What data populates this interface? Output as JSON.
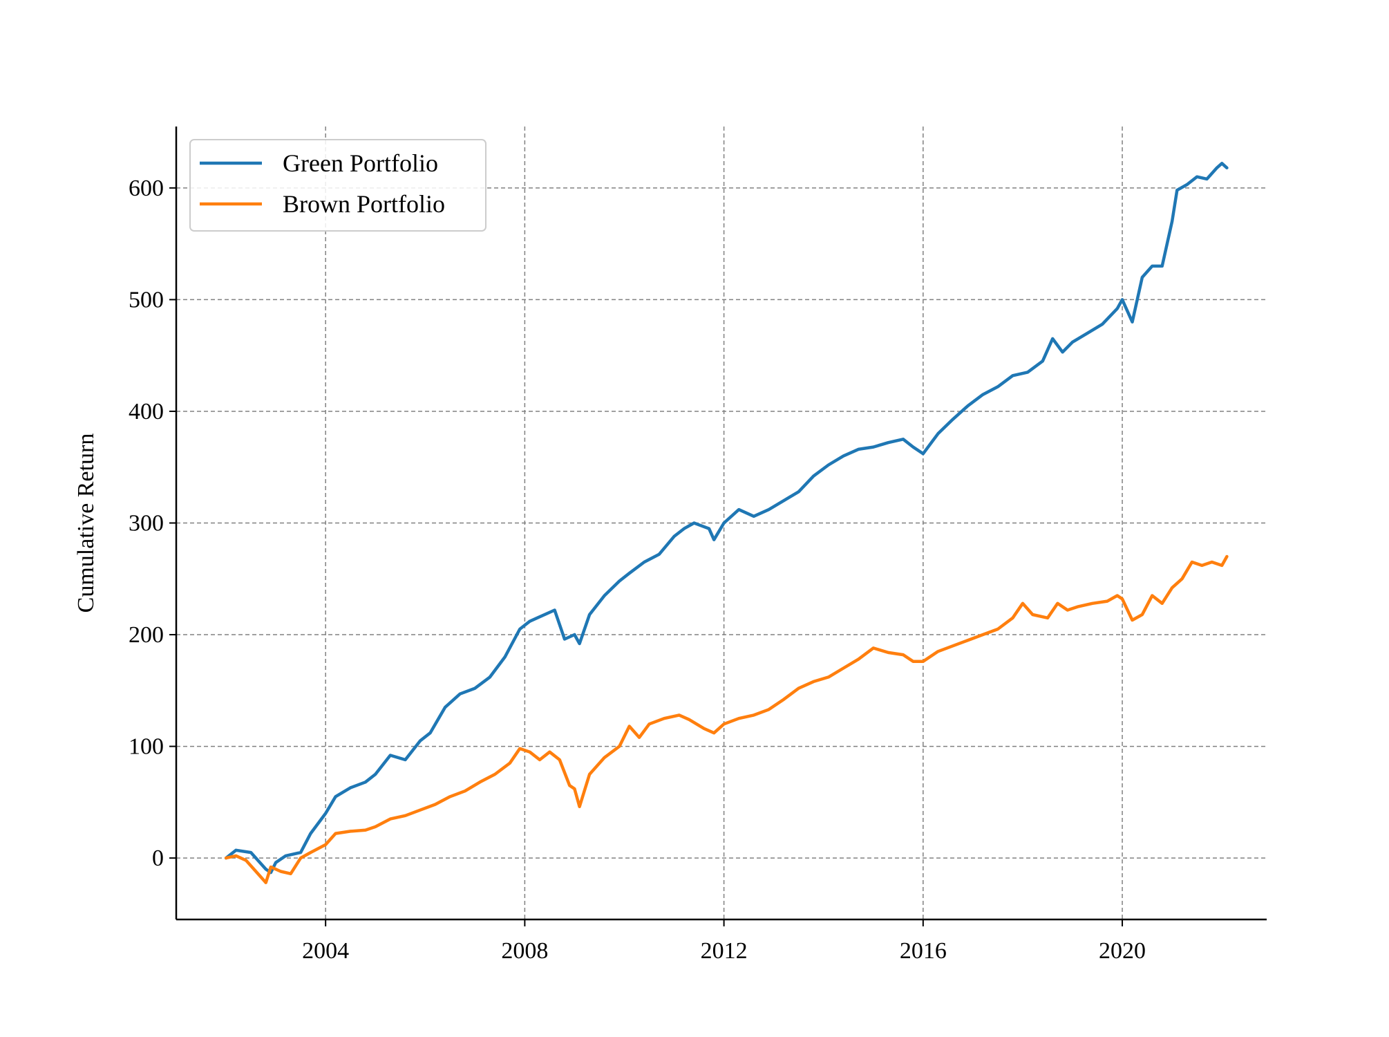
{
  "chart_data": {
    "type": "line",
    "title": "",
    "xlabel": "",
    "ylabel": "Cumulative Return",
    "xlim": [
      2001.0,
      2022.9
    ],
    "ylim": [
      -55,
      655
    ],
    "x_ticks": [
      2004,
      2008,
      2012,
      2016,
      2020
    ],
    "y_ticks": [
      0,
      100,
      200,
      300,
      400,
      500,
      600
    ],
    "grid": true,
    "legend_position": "top-left",
    "series": [
      {
        "name": "Green Portfolio",
        "color": "#1f77b4",
        "points": [
          [
            2002.0,
            0
          ],
          [
            2002.2,
            7
          ],
          [
            2002.5,
            5
          ],
          [
            2002.8,
            -10
          ],
          [
            2002.9,
            -13
          ],
          [
            2003.0,
            -4
          ],
          [
            2003.2,
            2
          ],
          [
            2003.5,
            5
          ],
          [
            2003.7,
            22
          ],
          [
            2004.0,
            40
          ],
          [
            2004.2,
            55
          ],
          [
            2004.5,
            63
          ],
          [
            2004.8,
            68
          ],
          [
            2005.0,
            75
          ],
          [
            2005.3,
            92
          ],
          [
            2005.6,
            88
          ],
          [
            2005.9,
            105
          ],
          [
            2006.1,
            112
          ],
          [
            2006.4,
            135
          ],
          [
            2006.7,
            147
          ],
          [
            2007.0,
            152
          ],
          [
            2007.3,
            162
          ],
          [
            2007.6,
            180
          ],
          [
            2007.9,
            205
          ],
          [
            2008.1,
            212
          ],
          [
            2008.3,
            216
          ],
          [
            2008.6,
            222
          ],
          [
            2008.8,
            196
          ],
          [
            2009.0,
            200
          ],
          [
            2009.1,
            192
          ],
          [
            2009.3,
            218
          ],
          [
            2009.6,
            235
          ],
          [
            2009.9,
            248
          ],
          [
            2010.1,
            255
          ],
          [
            2010.4,
            265
          ],
          [
            2010.7,
            272
          ],
          [
            2011.0,
            288
          ],
          [
            2011.2,
            295
          ],
          [
            2011.4,
            300
          ],
          [
            2011.7,
            295
          ],
          [
            2011.8,
            285
          ],
          [
            2012.0,
            300
          ],
          [
            2012.3,
            312
          ],
          [
            2012.6,
            306
          ],
          [
            2012.9,
            312
          ],
          [
            2013.2,
            320
          ],
          [
            2013.5,
            328
          ],
          [
            2013.8,
            342
          ],
          [
            2014.1,
            352
          ],
          [
            2014.4,
            360
          ],
          [
            2014.7,
            366
          ],
          [
            2015.0,
            368
          ],
          [
            2015.3,
            372
          ],
          [
            2015.6,
            375
          ],
          [
            2015.8,
            368
          ],
          [
            2016.0,
            362
          ],
          [
            2016.3,
            380
          ],
          [
            2016.6,
            393
          ],
          [
            2016.9,
            405
          ],
          [
            2017.2,
            415
          ],
          [
            2017.5,
            422
          ],
          [
            2017.8,
            432
          ],
          [
            2018.1,
            435
          ],
          [
            2018.4,
            445
          ],
          [
            2018.6,
            465
          ],
          [
            2018.8,
            453
          ],
          [
            2019.0,
            462
          ],
          [
            2019.3,
            470
          ],
          [
            2019.6,
            478
          ],
          [
            2019.9,
            492
          ],
          [
            2020.0,
            500
          ],
          [
            2020.2,
            480
          ],
          [
            2020.4,
            520
          ],
          [
            2020.6,
            530
          ],
          [
            2020.8,
            530
          ],
          [
            2021.0,
            570
          ],
          [
            2021.1,
            598
          ],
          [
            2021.3,
            603
          ],
          [
            2021.5,
            610
          ],
          [
            2021.7,
            608
          ],
          [
            2021.9,
            618
          ],
          [
            2022.0,
            622
          ],
          [
            2022.1,
            618
          ]
        ]
      },
      {
        "name": "Brown Portfolio",
        "color": "#ff7f0e",
        "points": [
          [
            2002.0,
            0
          ],
          [
            2002.2,
            2
          ],
          [
            2002.4,
            -2
          ],
          [
            2002.6,
            -12
          ],
          [
            2002.8,
            -22
          ],
          [
            2002.9,
            -8
          ],
          [
            2003.1,
            -12
          ],
          [
            2003.3,
            -14
          ],
          [
            2003.5,
            0
          ],
          [
            2003.7,
            5
          ],
          [
            2004.0,
            12
          ],
          [
            2004.2,
            22
          ],
          [
            2004.5,
            24
          ],
          [
            2004.8,
            25
          ],
          [
            2005.0,
            28
          ],
          [
            2005.3,
            35
          ],
          [
            2005.6,
            38
          ],
          [
            2005.9,
            43
          ],
          [
            2006.2,
            48
          ],
          [
            2006.5,
            55
          ],
          [
            2006.8,
            60
          ],
          [
            2007.1,
            68
          ],
          [
            2007.4,
            75
          ],
          [
            2007.7,
            85
          ],
          [
            2007.9,
            98
          ],
          [
            2008.1,
            95
          ],
          [
            2008.3,
            88
          ],
          [
            2008.5,
            95
          ],
          [
            2008.7,
            88
          ],
          [
            2008.9,
            65
          ],
          [
            2009.0,
            62
          ],
          [
            2009.1,
            46
          ],
          [
            2009.3,
            75
          ],
          [
            2009.6,
            90
          ],
          [
            2009.9,
            100
          ],
          [
            2010.1,
            118
          ],
          [
            2010.3,
            108
          ],
          [
            2010.5,
            120
          ],
          [
            2010.8,
            125
          ],
          [
            2011.1,
            128
          ],
          [
            2011.3,
            124
          ],
          [
            2011.6,
            116
          ],
          [
            2011.8,
            112
          ],
          [
            2012.0,
            120
          ],
          [
            2012.3,
            125
          ],
          [
            2012.6,
            128
          ],
          [
            2012.9,
            133
          ],
          [
            2013.2,
            142
          ],
          [
            2013.5,
            152
          ],
          [
            2013.8,
            158
          ],
          [
            2014.1,
            162
          ],
          [
            2014.4,
            170
          ],
          [
            2014.7,
            178
          ],
          [
            2015.0,
            188
          ],
          [
            2015.3,
            184
          ],
          [
            2015.6,
            182
          ],
          [
            2015.8,
            176
          ],
          [
            2016.0,
            176
          ],
          [
            2016.3,
            185
          ],
          [
            2016.6,
            190
          ],
          [
            2016.9,
            195
          ],
          [
            2017.2,
            200
          ],
          [
            2017.5,
            205
          ],
          [
            2017.8,
            215
          ],
          [
            2018.0,
            228
          ],
          [
            2018.2,
            218
          ],
          [
            2018.5,
            215
          ],
          [
            2018.7,
            228
          ],
          [
            2018.9,
            222
          ],
          [
            2019.1,
            225
          ],
          [
            2019.4,
            228
          ],
          [
            2019.7,
            230
          ],
          [
            2019.9,
            235
          ],
          [
            2020.0,
            232
          ],
          [
            2020.2,
            213
          ],
          [
            2020.4,
            218
          ],
          [
            2020.6,
            235
          ],
          [
            2020.8,
            228
          ],
          [
            2021.0,
            242
          ],
          [
            2021.2,
            250
          ],
          [
            2021.4,
            265
          ],
          [
            2021.6,
            262
          ],
          [
            2021.8,
            265
          ],
          [
            2022.0,
            262
          ],
          [
            2022.1,
            270
          ]
        ]
      }
    ]
  }
}
